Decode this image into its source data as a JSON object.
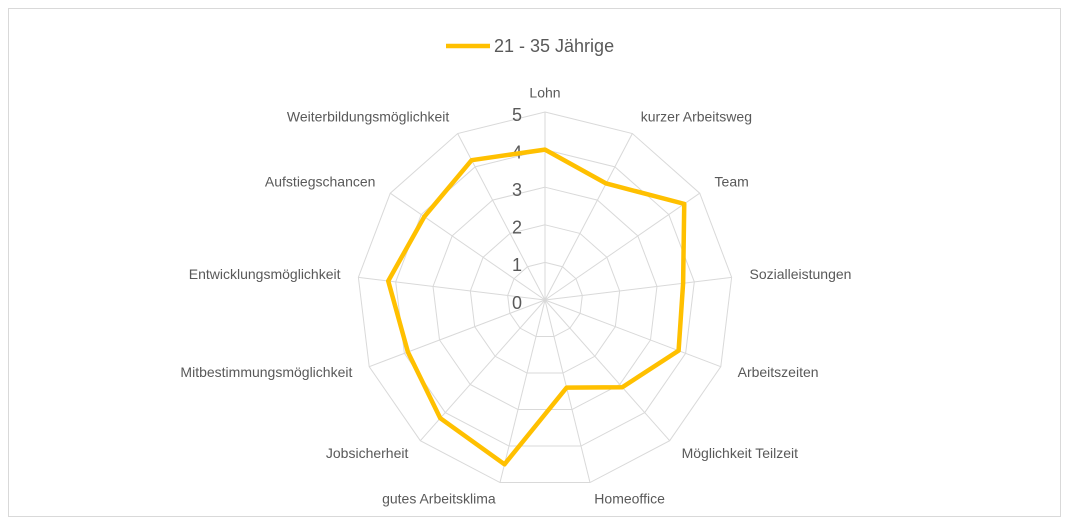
{
  "chart_data": {
    "type": "radar",
    "categories": [
      "Lohn",
      "kurzer Arbeitsweg",
      "Team",
      "Sozialleistungen",
      "Arbeitszeiten",
      "Möglichkeit Teilzeit",
      "Homeoffice",
      "gutes Arbeitsklima",
      "Jobsicherheit",
      "Mitbestimmungsmöglichkeit",
      "Entwicklungsmöglichkeit",
      "Aufstiegschancen",
      "Weiterbildungsmöglichkeit"
    ],
    "series": [
      {
        "name": "21 - 35 Jährige",
        "color": "#ffc000",
        "values": [
          4,
          3.5,
          4.5,
          3.7,
          3.8,
          3.1,
          2.4,
          4.5,
          4.2,
          3.9,
          4.2,
          3.9,
          4.2
        ]
      }
    ],
    "ylim": [
      0,
      5
    ],
    "yticks": [
      0,
      1,
      2,
      3,
      4,
      5
    ],
    "grid": true,
    "legend": "top"
  }
}
